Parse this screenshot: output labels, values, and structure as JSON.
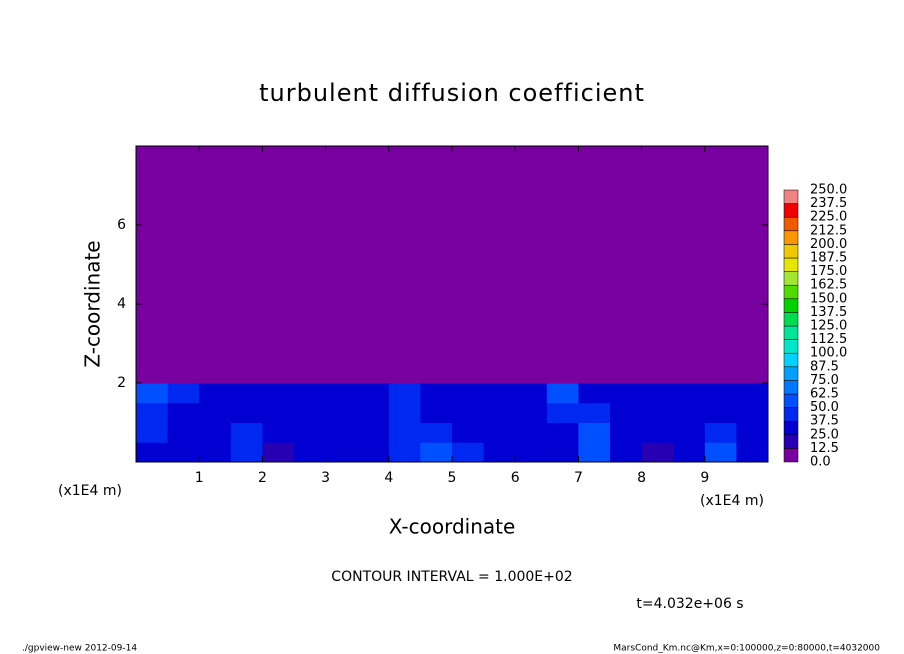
{
  "chart_data": {
    "type": "heatmap",
    "title": "turbulent diffusion coefficient",
    "xlabel": "X-coordinate",
    "ylabel": "Z-coordinate",
    "x_unit": "(x1E4 m)",
    "y_unit": "(x1E4 m)",
    "annotation": "CONTOUR INTERVAL = 1.000E+02",
    "time_label": "t=4.032e+06 s",
    "footer_left": "./gpview-new  2012-09-14",
    "footer_right": "MarsCond_Km.nc@Km,x=0:100000,z=0:80000,t=4032000",
    "xlim": [
      0,
      10
    ],
    "ylim": [
      0,
      8
    ],
    "xticks": [
      1,
      2,
      3,
      4,
      5,
      6,
      7,
      8,
      9
    ],
    "yticks": [
      2,
      4,
      6
    ],
    "x_edges": [
      0,
      0.5,
      1,
      1.5,
      2,
      2.5,
      3,
      3.5,
      4,
      4.5,
      5,
      5.5,
      6,
      6.5,
      7,
      7.5,
      8,
      8.5,
      9,
      9.5,
      10
    ],
    "z_edges": [
      0,
      0.5,
      1,
      1.5,
      2,
      3.5,
      5,
      6.5,
      8
    ],
    "values": [
      [
        35,
        30,
        25,
        40,
        20,
        30,
        25,
        30,
        40,
        50,
        40,
        30,
        25,
        30,
        55,
        25,
        20,
        30,
        50,
        35
      ],
      [
        40,
        30,
        35,
        45,
        25,
        30,
        30,
        35,
        45,
        45,
        35,
        30,
        30,
        35,
        50,
        30,
        30,
        35,
        40,
        30
      ],
      [
        45,
        35,
        30,
        30,
        35,
        30,
        25,
        35,
        40,
        35,
        30,
        25,
        35,
        40,
        45,
        35,
        30,
        30,
        25,
        35
      ],
      [
        50,
        40,
        35,
        30,
        30,
        30,
        25,
        30,
        45,
        30,
        30,
        25,
        30,
        50,
        35,
        30,
        35,
        25,
        30,
        35
      ],
      [
        5,
        5,
        5,
        5,
        5,
        5,
        5,
        5,
        5,
        5,
        5,
        5,
        5,
        5,
        5,
        5,
        5,
        5,
        5,
        5
      ],
      [
        5,
        5,
        5,
        5,
        5,
        5,
        5,
        5,
        5,
        5,
        5,
        5,
        5,
        5,
        5,
        5,
        5,
        5,
        5,
        5
      ],
      [
        5,
        5,
        5,
        5,
        5,
        5,
        5,
        5,
        5,
        5,
        5,
        5,
        5,
        5,
        5,
        5,
        5,
        5,
        5,
        5
      ],
      [
        5,
        5,
        5,
        5,
        5,
        5,
        5,
        5,
        5,
        5,
        5,
        5,
        5,
        5,
        5,
        5,
        5,
        5,
        5,
        5
      ]
    ],
    "levels": [
      {
        "value": 0,
        "label": "0.0"
      },
      12.5,
      {
        "value": 25,
        "label": "25.0"
      },
      37.5,
      {
        "value": 50,
        "label": "50.0"
      },
      62.5,
      {
        "value": 75,
        "label": "75.0"
      },
      87.5,
      {
        "value": 100,
        "label": "100.0"
      },
      112.5,
      {
        "value": 125,
        "label": "125.0"
      },
      137.5,
      {
        "value": 150,
        "label": "150.0"
      },
      162.5,
      {
        "value": 175,
        "label": "175.0"
      },
      187.5,
      {
        "value": 200,
        "label": "200.0"
      },
      212.5,
      {
        "value": 225,
        "label": "225.0"
      },
      237.5,
      {
        "value": 250,
        "label": "250.0"
      }
    ],
    "colors": [
      "#7800a0",
      "#2800b4",
      "#0000d2",
      "#0028f0",
      "#0050ff",
      "#0078ff",
      "#00a0ff",
      "#00d2ff",
      "#00e6c8",
      "#00e696",
      "#00dc50",
      "#00d200",
      "#50dc00",
      "#a0e632",
      "#e6e600",
      "#f0c800",
      "#fa9600",
      "#f05a00",
      "#f00000",
      "#f08282"
    ]
  }
}
